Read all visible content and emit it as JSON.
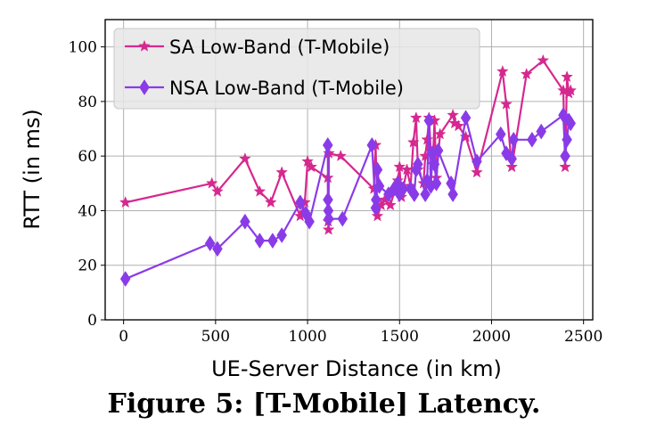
{
  "caption": "Figure 5: [T-Mobile] Latency.",
  "chart_data": {
    "type": "line",
    "title": "",
    "xlabel": "UE-Server Distance (in km)",
    "ylabel": "RTT (in ms)",
    "xlim": [
      -100,
      2550
    ],
    "ylim": [
      0,
      110
    ],
    "xticks": [
      0,
      500,
      1000,
      1500,
      2000,
      2500
    ],
    "yticks": [
      0,
      20,
      40,
      60,
      80,
      100
    ],
    "grid": true,
    "legend_position": "top-left",
    "series": [
      {
        "name": "SA Low-Band (T-Mobile)",
        "color": "#d6288f",
        "marker": "star",
        "x": [
          10,
          480,
          510,
          660,
          740,
          800,
          860,
          960,
          985,
          1000,
          1020,
          1110,
          1112,
          1114,
          1116,
          1180,
          1360,
          1370,
          1380,
          1400,
          1420,
          1450,
          1490,
          1500,
          1510,
          1540,
          1560,
          1575,
          1590,
          1600,
          1630,
          1640,
          1650,
          1660,
          1670,
          1680,
          1690,
          1700,
          1720,
          1790,
          1800,
          1820,
          1860,
          1920,
          2060,
          2080,
          2110,
          2190,
          2280,
          2390,
          2400,
          2410,
          2420,
          2430
        ],
        "y": [
          43,
          50,
          47,
          59,
          47,
          43,
          54,
          38,
          43,
          58,
          56,
          52,
          36,
          33,
          61,
          60,
          48,
          64,
          38,
          42,
          44,
          42,
          51,
          56,
          45,
          55,
          49,
          65,
          74,
          55,
          50,
          60,
          66,
          74,
          62,
          57,
          73,
          52,
          68,
          75,
          72,
          71,
          67,
          54,
          91,
          79,
          56,
          90,
          95,
          84,
          56,
          89,
          83,
          84
        ]
      },
      {
        "name": "NSA Low-Band (T-Mobile)",
        "color": "#8a3be8",
        "marker": "diamond",
        "x": [
          10,
          470,
          510,
          660,
          740,
          810,
          860,
          960,
          990,
          1010,
          1110,
          1111,
          1113,
          1115,
          1190,
          1350,
          1370,
          1372,
          1380,
          1390,
          1440,
          1470,
          1490,
          1500,
          1520,
          1560,
          1580,
          1590,
          1600,
          1640,
          1650,
          1660,
          1670,
          1680,
          1690,
          1700,
          1710,
          1780,
          1790,
          1860,
          1920,
          2050,
          2080,
          2110,
          2120,
          2220,
          2270,
          2390,
          2400,
          2410,
          2420,
          2430
        ],
        "y": [
          15,
          28,
          26,
          36,
          29,
          29,
          31,
          43,
          39,
          36,
          64,
          44,
          40,
          37,
          37,
          64,
          41,
          44,
          55,
          49,
          46,
          48,
          50,
          46,
          48,
          48,
          46,
          55,
          57,
          46,
          51,
          73,
          49,
          61,
          57,
          50,
          62,
          50,
          46,
          74,
          58,
          68,
          61,
          59,
          66,
          66,
          69,
          75,
          60,
          66,
          73,
          72
        ]
      }
    ]
  }
}
